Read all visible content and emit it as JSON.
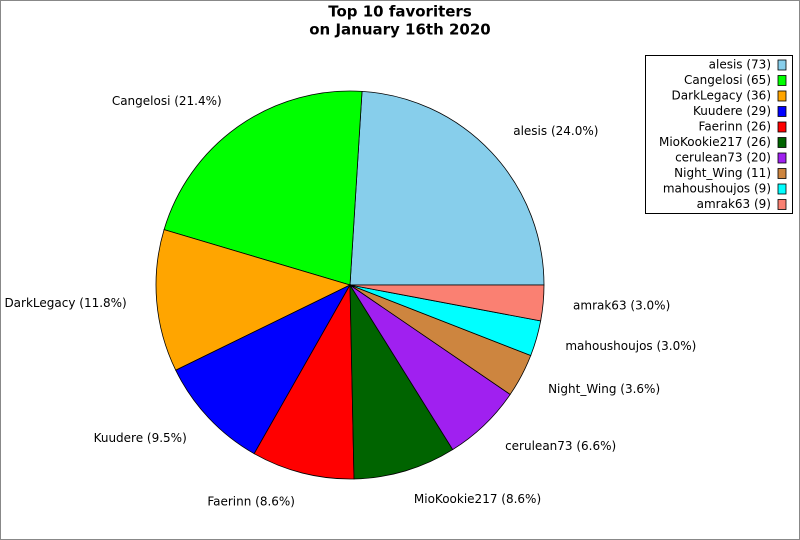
{
  "chart_data": {
    "type": "pie",
    "title": [
      "Top 10 favoriters",
      "on January 16th 2020"
    ],
    "values": [
      73,
      65,
      36,
      29,
      26,
      26,
      20,
      11,
      9,
      9
    ],
    "labels": [
      "alesis (24.0%)",
      "Cangelosi (21.4%)",
      "DarkLegacy (11.8%)",
      "Kuudere (9.5%)",
      "Faerinn (8.6%)",
      "MioKookie217 (8.6%)",
      "cerulean73 (6.6%)",
      "Night_Wing (3.6%)",
      "mahoushoujos (3.0%)",
      "amrak63 (3.0%)"
    ],
    "legend_labels": [
      "alesis (73)",
      "Cangelosi (65)",
      "DarkLegacy (36)",
      "Kuudere (29)",
      "Faerinn (26)",
      "MioKookie217 (26)",
      "cerulean73 (20)",
      "Night_Wing (11)",
      "mahoushoujos (9)",
      "amrak63 (9)"
    ],
    "colors": [
      "#87ceeb",
      "#00ff00",
      "#ffa500",
      "#0000ff",
      "#ff0000",
      "#006400",
      "#a020f0",
      "#cd853f",
      "#00ffff",
      "#fa8072"
    ],
    "legend_position": "upper right"
  }
}
